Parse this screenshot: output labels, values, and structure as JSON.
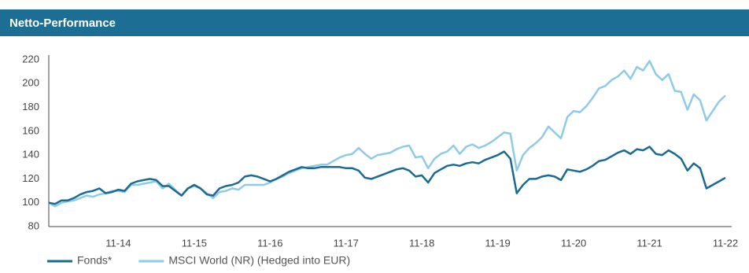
{
  "chart_data": {
    "type": "line",
    "title": "Netto-Performance",
    "categories": [
      null,
      null,
      null,
      null,
      null,
      null,
      null,
      null,
      null,
      null,
      null,
      "11-14",
      null,
      null,
      null,
      null,
      null,
      null,
      null,
      null,
      null,
      null,
      null,
      "11-15",
      null,
      null,
      null,
      null,
      null,
      null,
      null,
      null,
      null,
      null,
      null,
      "11-16",
      null,
      null,
      null,
      null,
      null,
      null,
      null,
      null,
      null,
      null,
      null,
      "11-17",
      null,
      null,
      null,
      null,
      null,
      null,
      null,
      null,
      null,
      null,
      null,
      "11-18",
      null,
      null,
      null,
      null,
      null,
      null,
      null,
      null,
      null,
      null,
      null,
      "11-19",
      null,
      null,
      null,
      null,
      null,
      null,
      null,
      null,
      null,
      null,
      null,
      "11-20",
      null,
      null,
      null,
      null,
      null,
      null,
      null,
      null,
      null,
      null,
      null,
      "11-21",
      null,
      null,
      null,
      null,
      null,
      null,
      null,
      null,
      null,
      null,
      null,
      "11-22"
    ],
    "series": [
      {
        "name": "Fonds*",
        "color": "#1a6a93",
        "values": [
          100,
          99,
          102,
          102,
          104,
          107,
          109,
          110,
          112,
          108,
          109,
          111,
          110,
          116,
          118,
          119,
          120,
          119,
          114,
          114,
          110,
          106,
          112,
          115,
          112,
          107,
          106,
          112,
          114,
          115,
          117,
          122,
          123,
          122,
          120,
          118,
          120,
          123,
          126,
          128,
          130,
          129,
          129,
          130,
          130,
          130,
          130,
          129,
          129,
          127,
          121,
          120,
          122,
          124,
          126,
          128,
          129,
          127,
          122,
          123,
          117,
          125,
          128,
          131,
          132,
          131,
          133,
          134,
          133,
          136,
          138,
          140,
          143,
          137,
          108,
          115,
          120,
          120,
          122,
          123,
          122,
          119,
          128,
          127,
          126,
          128,
          131,
          135,
          136,
          139,
          142,
          144,
          141,
          145,
          144,
          147,
          141,
          140,
          144,
          141,
          137,
          127,
          133,
          129,
          112,
          115,
          118,
          121
        ]
      },
      {
        "name": "MSCI World (NR) (Hedged into EUR)",
        "color": "#8ecbe6",
        "values": [
          100,
          97,
          100,
          101,
          102,
          104,
          106,
          105,
          107,
          108,
          110,
          110,
          109,
          115,
          115,
          116,
          117,
          118,
          112,
          116,
          111,
          106,
          112,
          114,
          112,
          108,
          104,
          109,
          110,
          112,
          111,
          115,
          115,
          115,
          115,
          117,
          120,
          122,
          125,
          127,
          129,
          130,
          131,
          132,
          132,
          135,
          138,
          140,
          141,
          146,
          141,
          137,
          140,
          141,
          142,
          145,
          147,
          148,
          138,
          139,
          129,
          137,
          141,
          143,
          148,
          141,
          147,
          149,
          146,
          148,
          151,
          155,
          159,
          158,
          127,
          140,
          146,
          150,
          155,
          164,
          159,
          154,
          172,
          177,
          176,
          181,
          188,
          196,
          198,
          203,
          206,
          211,
          204,
          214,
          211,
          219,
          208,
          203,
          208,
          194,
          193,
          178,
          191,
          186,
          169,
          177,
          185,
          190
        ]
      }
    ],
    "ylim": [
      80,
      220
    ],
    "yticks": [
      80,
      100,
      120,
      140,
      160,
      180,
      200,
      220
    ],
    "grid": false
  }
}
